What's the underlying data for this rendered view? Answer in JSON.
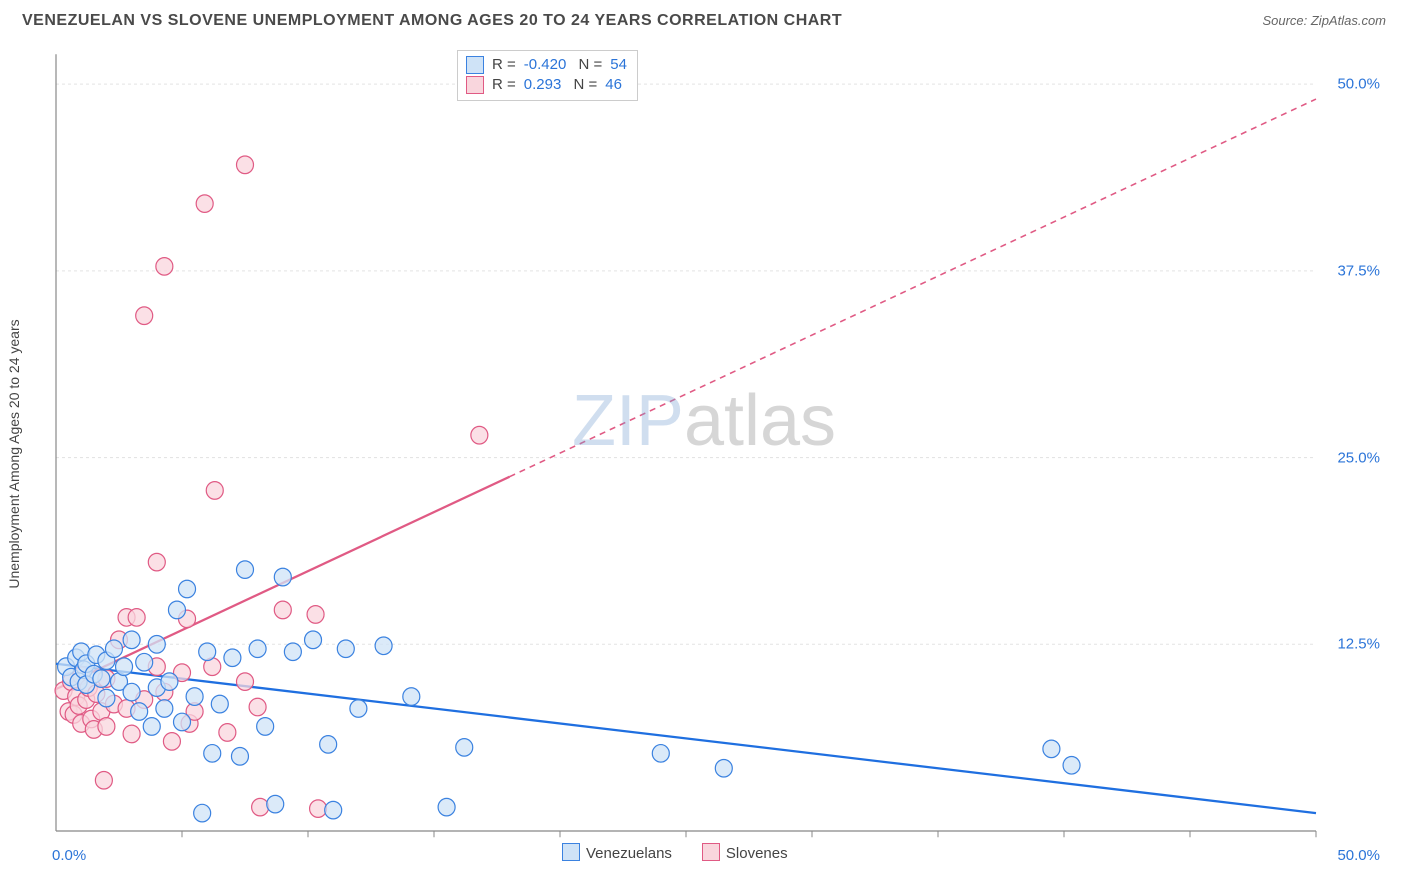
{
  "title": "VENEZUELAN VS SLOVENE UNEMPLOYMENT AMONG AGES 20 TO 24 YEARS CORRELATION CHART",
  "source": "Source: ZipAtlas.com",
  "watermark_a": "ZIP",
  "watermark_b": "atlas",
  "chart": {
    "type": "scatter-with-regression",
    "background_color": "#ffffff",
    "grid_color": "#e4e4e4",
    "axis_color": "#888888",
    "tick_font_size": 15,
    "tick_color": "#2b74d8",
    "xlim": [
      0,
      50
    ],
    "ylim": [
      0,
      52
    ],
    "x_ticks_minor": [
      5,
      10,
      15,
      20,
      25,
      30,
      35,
      40,
      45,
      50
    ],
    "y_ticks_labeled": [
      12.5,
      25.0,
      37.5,
      50.0
    ],
    "x_origin_label": "0.0%",
    "x_max_label": "50.0%",
    "ylabel": "Unemployment Among Ages 20 to 24 years",
    "marker_radius": 8.5,
    "marker_stroke_width": 1.2,
    "line_width": 2.2,
    "series": [
      {
        "id": "venezuelans",
        "label": "Venezuelans",
        "fill": "#cfe3f7",
        "stroke": "#3b82e0",
        "line_color": "#1f6fe0",
        "R": "-0.420",
        "N": "54",
        "regression": {
          "x1": 0,
          "y1": 11.2,
          "x2": 50,
          "y2": 1.2,
          "dash_from_x": null
        },
        "points": [
          [
            0.4,
            11.0
          ],
          [
            0.6,
            10.3
          ],
          [
            0.8,
            11.6
          ],
          [
            0.9,
            10.0
          ],
          [
            1.0,
            12.0
          ],
          [
            1.1,
            10.8
          ],
          [
            1.2,
            11.2
          ],
          [
            1.2,
            9.8
          ],
          [
            1.5,
            10.5
          ],
          [
            1.6,
            11.8
          ],
          [
            1.8,
            10.2
          ],
          [
            2.0,
            11.4
          ],
          [
            2.0,
            8.9
          ],
          [
            2.3,
            12.2
          ],
          [
            2.5,
            10.0
          ],
          [
            2.7,
            11.0
          ],
          [
            3.0,
            9.3
          ],
          [
            3.0,
            12.8
          ],
          [
            3.3,
            8.0
          ],
          [
            3.5,
            11.3
          ],
          [
            3.8,
            7.0
          ],
          [
            4.0,
            12.5
          ],
          [
            4.0,
            9.6
          ],
          [
            4.3,
            8.2
          ],
          [
            4.5,
            10.0
          ],
          [
            4.8,
            14.8
          ],
          [
            5.0,
            7.3
          ],
          [
            5.2,
            16.2
          ],
          [
            5.5,
            9.0
          ],
          [
            5.8,
            1.2
          ],
          [
            6.0,
            12.0
          ],
          [
            6.2,
            5.2
          ],
          [
            6.5,
            8.5
          ],
          [
            7.0,
            11.6
          ],
          [
            7.3,
            5.0
          ],
          [
            7.5,
            17.5
          ],
          [
            8.0,
            12.2
          ],
          [
            8.3,
            7.0
          ],
          [
            8.7,
            1.8
          ],
          [
            9.0,
            17.0
          ],
          [
            9.4,
            12.0
          ],
          [
            10.2,
            12.8
          ],
          [
            10.8,
            5.8
          ],
          [
            11.0,
            1.4
          ],
          [
            11.5,
            12.2
          ],
          [
            12.0,
            8.2
          ],
          [
            13.0,
            12.4
          ],
          [
            14.1,
            9.0
          ],
          [
            15.5,
            1.6
          ],
          [
            16.2,
            5.6
          ],
          [
            24.0,
            5.2
          ],
          [
            26.5,
            4.2
          ],
          [
            39.5,
            5.5
          ],
          [
            40.3,
            4.4
          ]
        ]
      },
      {
        "id": "slovenes",
        "label": "Slovenes",
        "fill": "#f9d6dd",
        "stroke": "#e05a84",
        "line_color": "#e05a84",
        "R": "0.293",
        "N": "46",
        "regression": {
          "x1": 0,
          "y1": 9.5,
          "x2": 50,
          "y2": 49.0,
          "dash_from_x": 18
        },
        "points": [
          [
            0.3,
            9.4
          ],
          [
            0.5,
            8.0
          ],
          [
            0.6,
            10.0
          ],
          [
            0.7,
            7.8
          ],
          [
            0.8,
            9.0
          ],
          [
            0.9,
            8.4
          ],
          [
            1.0,
            10.4
          ],
          [
            1.0,
            7.2
          ],
          [
            1.2,
            8.8
          ],
          [
            1.3,
            9.6
          ],
          [
            1.4,
            7.5
          ],
          [
            1.5,
            6.8
          ],
          [
            1.6,
            9.2
          ],
          [
            1.8,
            8.0
          ],
          [
            1.9,
            3.4
          ],
          [
            2.0,
            10.2
          ],
          [
            2.0,
            7.0
          ],
          [
            2.3,
            8.5
          ],
          [
            2.5,
            12.8
          ],
          [
            2.8,
            14.3
          ],
          [
            2.8,
            8.2
          ],
          [
            3.0,
            6.5
          ],
          [
            3.2,
            14.3
          ],
          [
            3.5,
            8.8
          ],
          [
            3.5,
            34.5
          ],
          [
            4.0,
            11.0
          ],
          [
            4.0,
            18.0
          ],
          [
            4.3,
            9.3
          ],
          [
            4.3,
            37.8
          ],
          [
            4.6,
            6.0
          ],
          [
            5.0,
            10.6
          ],
          [
            5.2,
            14.2
          ],
          [
            5.3,
            7.2
          ],
          [
            5.5,
            8.0
          ],
          [
            5.9,
            42.0
          ],
          [
            6.2,
            11.0
          ],
          [
            6.3,
            22.8
          ],
          [
            6.8,
            6.6
          ],
          [
            7.5,
            10.0
          ],
          [
            7.5,
            44.6
          ],
          [
            8.0,
            8.3
          ],
          [
            8.1,
            1.6
          ],
          [
            9.0,
            14.8
          ],
          [
            10.3,
            14.5
          ],
          [
            10.4,
            1.5
          ],
          [
            16.8,
            26.5
          ]
        ]
      }
    ],
    "legend_series_pos": "bottom",
    "legend_stats_pos": "top"
  }
}
